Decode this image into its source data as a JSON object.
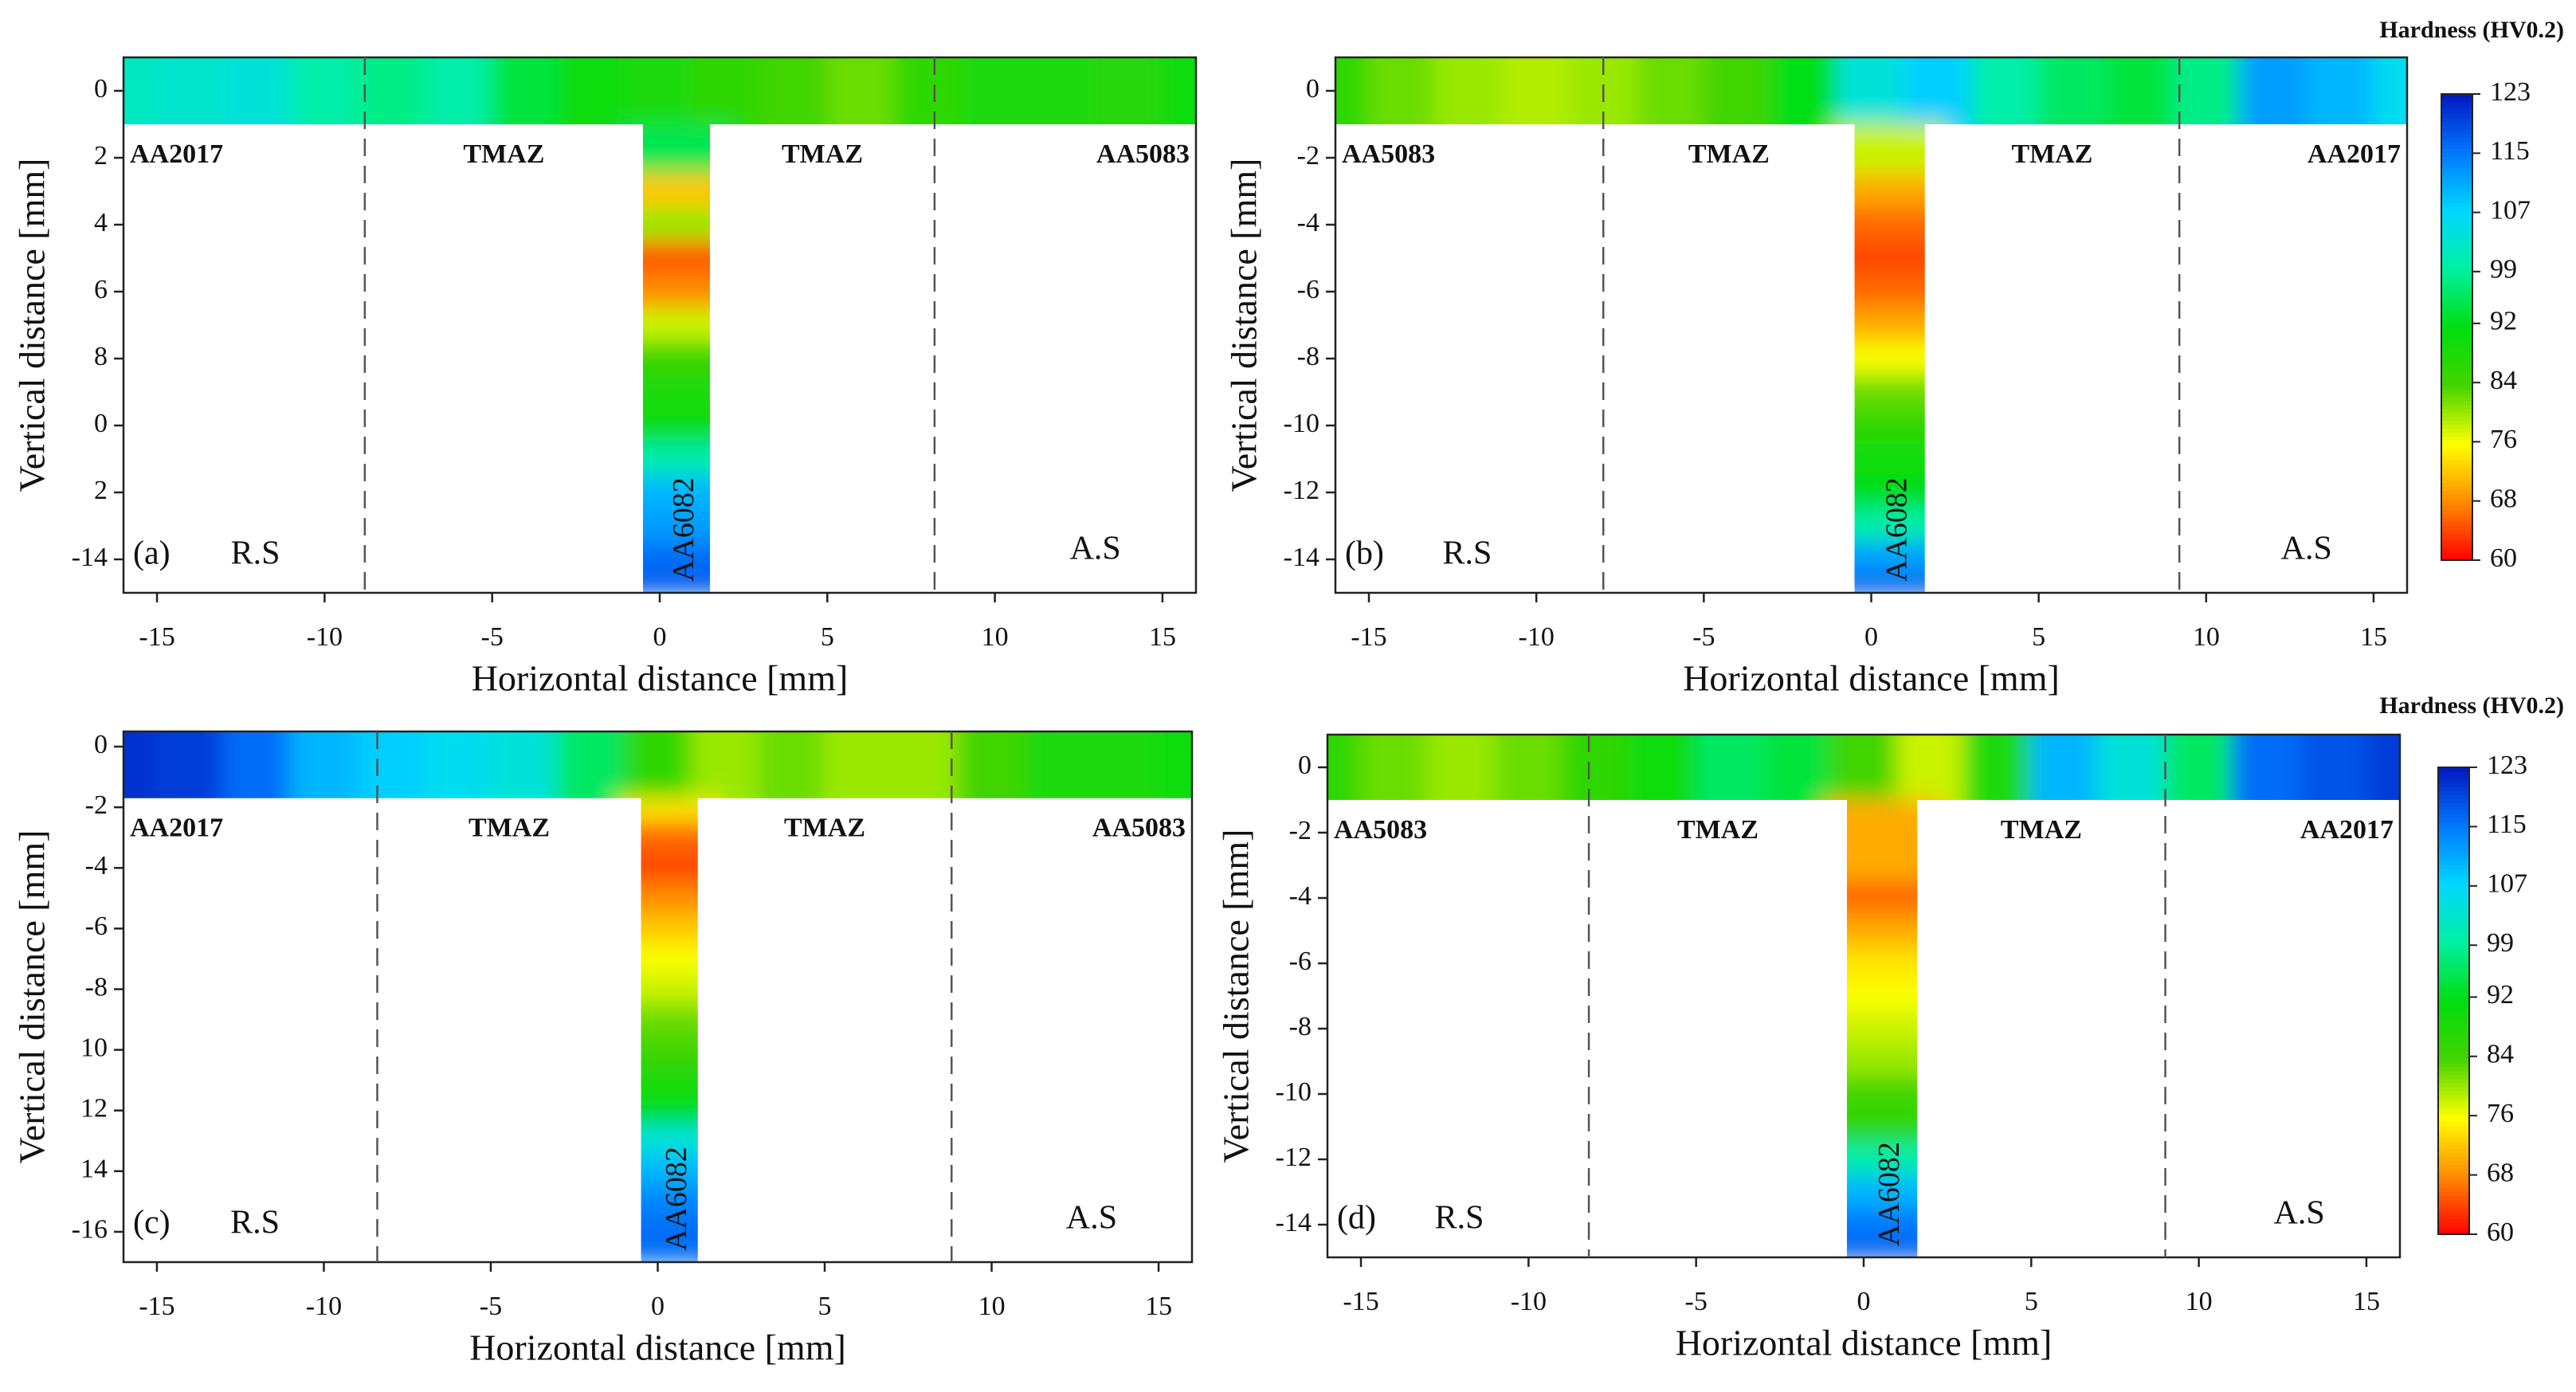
{
  "chart_data": [
    {
      "type": "contour",
      "panel": "(a)",
      "x_label": "Horizontal distance [mm]",
      "y_label": "Vertical distance [mm]",
      "xlim": [
        -16,
        16
      ],
      "xticks": [
        -15,
        -10,
        -5,
        0,
        5,
        10,
        15
      ],
      "ylim": [
        -15,
        1
      ],
      "yticks": [
        0,
        {
          "value": -2,
          "label": "2"
        },
        {
          "value": -4,
          "label": "4"
        },
        {
          "value": -6,
          "label": "6"
        },
        {
          "value": -8,
          "label": "8"
        },
        {
          "value": -10,
          "label": "0"
        },
        {
          "value": -12,
          "label": "2"
        },
        -14
      ],
      "regions": [
        "AA2017",
        "TMAZ",
        "TMAZ",
        "AA5083"
      ],
      "stem_label": "AA6082",
      "left_side": "R.S",
      "right_side": "A.S",
      "dividers": [
        -8.8,
        8.2
      ],
      "band_y": [
        1,
        -1
      ],
      "stem_x": [
        -0.5,
        1.5
      ],
      "band_x": [
        -16,
        -14,
        -12,
        -10,
        -8,
        -6,
        -4,
        -2,
        0,
        2,
        4,
        6,
        8,
        10,
        12,
        14,
        16
      ],
      "band_values": [
        102,
        103,
        104,
        100,
        98,
        100,
        94,
        90,
        88,
        86,
        84,
        82,
        86,
        88,
        88,
        87,
        90
      ],
      "stem_y": [
        -2,
        -3,
        -4,
        -5,
        -6,
        -7,
        -8,
        -9,
        -10,
        -11,
        -12,
        -13,
        -14,
        -15
      ],
      "stem_values": [
        95,
        72,
        80,
        65,
        68,
        78,
        85,
        88,
        90,
        100,
        110,
        112,
        116,
        118
      ]
    },
    {
      "type": "contour",
      "panel": "(b)",
      "x_label": "Horizontal distance [mm]",
      "y_label": "Vertical distance [mm]",
      "xlim": [
        -16,
        16
      ],
      "xticks": [
        -15,
        -10,
        -5,
        0,
        5,
        10,
        15
      ],
      "ylim": [
        -15,
        1
      ],
      "yticks": [
        0,
        -2,
        -4,
        -6,
        -8,
        -10,
        -12,
        -14
      ],
      "regions": [
        "AA5083",
        "TMAZ",
        "TMAZ",
        "AA2017"
      ],
      "stem_label": "AA6082",
      "left_side": "R.S",
      "right_side": "A.S",
      "dividers": [
        -8,
        9.2
      ],
      "band_y": [
        1,
        -1
      ],
      "stem_x": [
        -0.5,
        1.6
      ],
      "band_x": [
        -16,
        -14,
        -12,
        -10,
        -8,
        -6,
        -4,
        -2,
        0,
        2,
        4,
        6,
        8,
        10,
        12,
        14,
        16
      ],
      "band_values": [
        86,
        82,
        80,
        79,
        80,
        82,
        84,
        92,
        104,
        108,
        100,
        96,
        94,
        98,
        112,
        110,
        106
      ],
      "stem_y": [
        -2,
        -3,
        -4,
        -5,
        -6,
        -7,
        -8,
        -9,
        -10,
        -11,
        -12,
        -13,
        -14,
        -15
      ],
      "stem_values": [
        78,
        70,
        66,
        64,
        66,
        70,
        76,
        82,
        86,
        90,
        92,
        100,
        112,
        118
      ],
      "colorbar": {
        "title": "Hardness (HV0.2)",
        "clim": [
          60,
          123
        ],
        "ticks": [
          60,
          68,
          76,
          84,
          92,
          99,
          107,
          115,
          123
        ]
      }
    },
    {
      "type": "contour",
      "panel": "(c)",
      "x_label": "Horizontal distance [mm]",
      "y_label": "Vertical distance [mm]",
      "xlim": [
        -16,
        16
      ],
      "xticks": [
        -15,
        -10,
        -5,
        0,
        5,
        10,
        15
      ],
      "ylim": [
        -17,
        0.5
      ],
      "yticks": [
        0,
        -2,
        -4,
        -6,
        -8,
        {
          "value": -10,
          "label": "10"
        },
        {
          "value": -12,
          "label": "12"
        },
        {
          "value": -14,
          "label": "14"
        },
        -16
      ],
      "regions": [
        "AA2017",
        "TMAZ",
        "TMAZ",
        "AA5083"
      ],
      "stem_label": "AA6082",
      "left_side": "R.S",
      "right_side": "A.S",
      "dividers": [
        -8.4,
        8.8
      ],
      "band_y": [
        0.5,
        -1.7
      ],
      "stem_x": [
        -0.5,
        1.2
      ],
      "band_x": [
        -16,
        -14,
        -12,
        -10,
        -8,
        -6,
        -4,
        -2,
        0,
        2,
        4,
        6,
        8,
        10,
        12,
        14,
        16
      ],
      "band_values": [
        121,
        120,
        116,
        110,
        108,
        106,
        104,
        96,
        86,
        80,
        82,
        80,
        80,
        84,
        88,
        88,
        90
      ],
      "stem_y": [
        -2,
        -3,
        -4,
        -5,
        -6,
        -7,
        -8,
        -9,
        -10,
        -11,
        -12,
        -13,
        -14,
        -15,
        -16
      ],
      "stem_values": [
        74,
        66,
        64,
        68,
        72,
        76,
        78,
        82,
        84,
        88,
        92,
        104,
        110,
        114,
        116
      ]
    },
    {
      "type": "contour",
      "panel": "(d)",
      "x_label": "Horizontal distance [mm]",
      "y_label": "Vertical distance [mm]",
      "xlim": [
        -16,
        16
      ],
      "xticks": [
        -15,
        -10,
        -5,
        0,
        5,
        10,
        15
      ],
      "ylim": [
        -15,
        1
      ],
      "yticks": [
        0,
        -2,
        -4,
        -6,
        -8,
        -10,
        -12,
        -14
      ],
      "regions": [
        "AA5083",
        "TMAZ",
        "TMAZ",
        "AA2017"
      ],
      "stem_label": "AA6082",
      "left_side": "R.S",
      "right_side": "A.S",
      "dividers": [
        -8.2,
        9
      ],
      "band_y": [
        1,
        -1
      ],
      "stem_x": [
        -0.5,
        1.6
      ],
      "band_x": [
        -16,
        -14,
        -12,
        -10,
        -8,
        -6,
        -4,
        -2,
        0,
        2,
        4,
        6,
        8,
        10,
        12,
        14,
        16
      ],
      "band_values": [
        86,
        82,
        80,
        82,
        86,
        90,
        96,
        94,
        84,
        78,
        88,
        110,
        104,
        96,
        116,
        118,
        120
      ],
      "stem_y": [
        -2,
        -3,
        -4,
        -5,
        -6,
        -7,
        -8,
        -9,
        -10,
        -11,
        -12,
        -13,
        -14,
        -15
      ],
      "stem_values": [
        70,
        70,
        66,
        70,
        74,
        76,
        78,
        80,
        84,
        86,
        100,
        110,
        115,
        118
      ],
      "colorbar": {
        "title": "Hardness (HV0.2)",
        "clim": [
          60,
          123
        ],
        "ticks": [
          60,
          68,
          76,
          84,
          92,
          99,
          107,
          115,
          123
        ]
      }
    }
  ]
}
